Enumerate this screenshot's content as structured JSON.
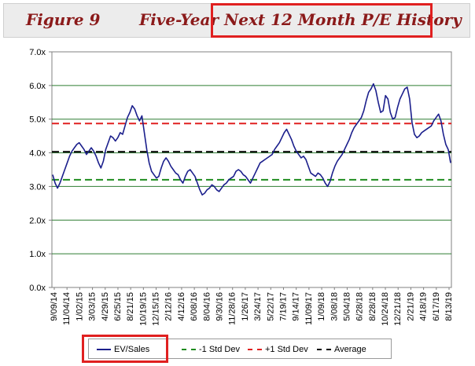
{
  "header": {
    "figure_label": "Figure 9",
    "title_prefix": "Five-Year ",
    "title_highlighted": "Next 12 Month P/E History"
  },
  "chart_data": {
    "type": "line",
    "title": "Five-Year Next 12 Month P/E History",
    "xlabel": "",
    "ylabel": "",
    "ylim": [
      0,
      7
    ],
    "y_ticks": [
      0,
      1,
      2,
      3,
      4,
      5,
      6,
      7
    ],
    "y_tick_labels": [
      "0.0x",
      "1.0x",
      "2.0x",
      "3.0x",
      "4.0x",
      "5.0x",
      "6.0x",
      "7.0x"
    ],
    "x_tick_labels": [
      "9/09/14",
      "11/04/14",
      "1/02/15",
      "3/03/15",
      "4/29/15",
      "6/25/15",
      "8/21/15",
      "10/19/15",
      "12/15/15",
      "2/12/16",
      "4/12/16",
      "6/08/16",
      "8/04/16",
      "9/30/16",
      "11/28/16",
      "1/26/17",
      "3/24/17",
      "5/22/17",
      "7/19/17",
      "9/14/17",
      "11/09/17",
      "1/09/18",
      "3/08/18",
      "5/04/18",
      "6/28/18",
      "8/28/18",
      "10/24/18",
      "12/21/18",
      "2/21/19",
      "4/18/19",
      "6/17/19",
      "8/13/19"
    ],
    "grid": true,
    "legend_position": "bottom",
    "series": [
      {
        "name": "EV/Sales",
        "color": "#1b1f8c",
        "style": "solid",
        "values": [
          3.35,
          3.1,
          2.95,
          3.1,
          3.3,
          3.5,
          3.7,
          3.9,
          4.05,
          4.15,
          4.25,
          4.3,
          4.2,
          4.1,
          3.95,
          4.05,
          4.15,
          4.05,
          3.9,
          3.7,
          3.55,
          3.75,
          4.1,
          4.3,
          4.5,
          4.45,
          4.35,
          4.45,
          4.6,
          4.55,
          4.8,
          5.05,
          5.2,
          5.4,
          5.3,
          5.1,
          4.95,
          5.1,
          4.6,
          4.1,
          3.7,
          3.45,
          3.35,
          3.25,
          3.3,
          3.55,
          3.75,
          3.85,
          3.75,
          3.6,
          3.5,
          3.4,
          3.35,
          3.2,
          3.1,
          3.3,
          3.45,
          3.5,
          3.4,
          3.3,
          3.1,
          2.9,
          2.75,
          2.8,
          2.9,
          2.95,
          3.05,
          3.0,
          2.9,
          2.85,
          2.95,
          3.05,
          3.1,
          3.2,
          3.25,
          3.3,
          3.45,
          3.5,
          3.45,
          3.35,
          3.3,
          3.2,
          3.1,
          3.25,
          3.4,
          3.55,
          3.7,
          3.75,
          3.8,
          3.85,
          3.9,
          3.95,
          4.1,
          4.2,
          4.3,
          4.45,
          4.6,
          4.7,
          4.55,
          4.4,
          4.2,
          4.05,
          3.95,
          3.85,
          3.9,
          3.8,
          3.6,
          3.4,
          3.35,
          3.3,
          3.4,
          3.35,
          3.25,
          3.1,
          3.0,
          3.15,
          3.4,
          3.6,
          3.75,
          3.85,
          3.95,
          4.1,
          4.25,
          4.4,
          4.6,
          4.75,
          4.85,
          4.95,
          5.05,
          5.25,
          5.55,
          5.8,
          5.9,
          6.05,
          5.85,
          5.5,
          5.2,
          5.25,
          5.7,
          5.6,
          5.2,
          5.0,
          5.05,
          5.35,
          5.6,
          5.75,
          5.9,
          5.95,
          5.6,
          4.9,
          4.55,
          4.45,
          4.5,
          4.6,
          4.65,
          4.7,
          4.75,
          4.8,
          4.95,
          5.05,
          5.15,
          4.95,
          4.55,
          4.25,
          4.1,
          3.7
        ]
      },
      {
        "name": "-1 Std Dev",
        "color": "#1e8c1e",
        "style": "dashed",
        "value": 3.2
      },
      {
        "name": "+1 Std Dev",
        "color": "#e02020",
        "style": "dashed",
        "value": 4.87
      },
      {
        "name": "Average",
        "color": "#000000",
        "style": "dashed",
        "value": 4.03
      }
    ]
  },
  "legend": {
    "items": [
      {
        "label": "EV/Sales",
        "color": "#1b1f8c",
        "style": "solid"
      },
      {
        "label": "-1 Std Dev",
        "color": "#1e8c1e",
        "style": "dashed"
      },
      {
        "label": "+1 Std Dev",
        "color": "#e02020",
        "style": "dashed"
      },
      {
        "label": "Average",
        "color": "#000000",
        "style": "dashed"
      }
    ]
  }
}
